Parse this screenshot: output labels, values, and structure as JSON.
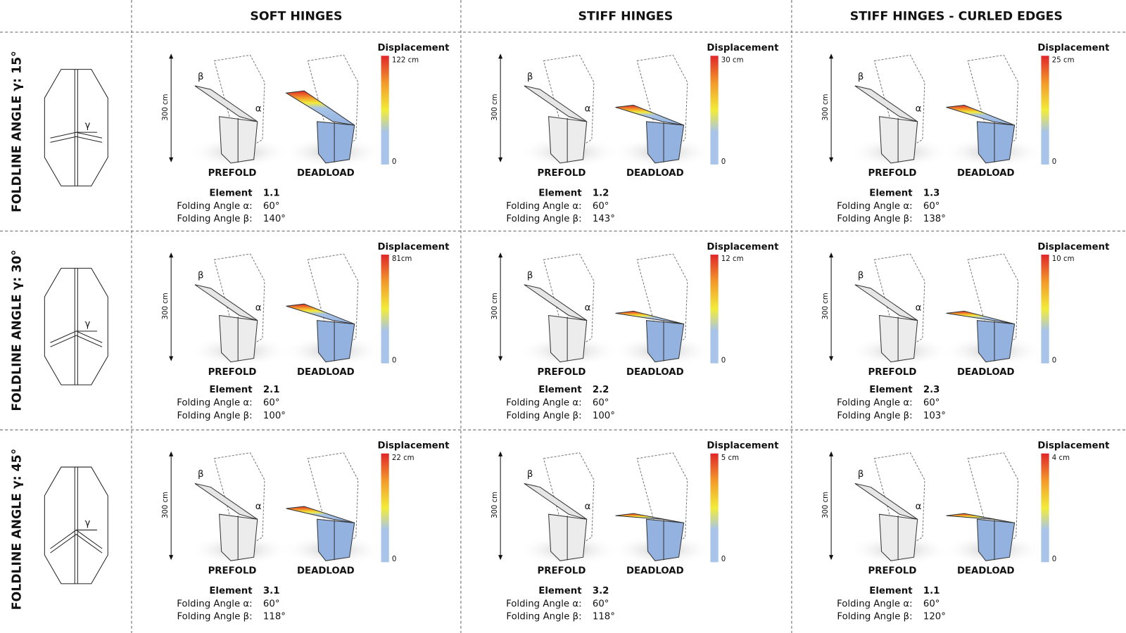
{
  "columns": [
    "SOFT HINGES",
    "STIFF HINGES",
    "STIFF HINGES - CURLED EDGES"
  ],
  "labels": {
    "legend_title": "Displacement",
    "legend_min": "0",
    "scale": "300 cm",
    "prefold": "PREFOLD",
    "deadload": "DEADLOAD",
    "element": "Element",
    "alpha": "Folding Angle α:",
    "beta": "Folding Angle β:",
    "alpha_symbol": "α",
    "beta_symbol": "β",
    "gamma_symbol": "γ"
  },
  "rows": [
    {
      "label": "FOLDLINE ANGLE γ: 15°",
      "cells": [
        {
          "max": "122 cm",
          "element": "1.1",
          "alpha": "60°",
          "beta": "140°"
        },
        {
          "max": "30 cm",
          "element": "1.2",
          "alpha": "60°",
          "beta": "143°"
        },
        {
          "max": "25 cm",
          "element": "1.3",
          "alpha": "60°",
          "beta": "138°"
        }
      ]
    },
    {
      "label": "FOLDLINE ANGLE γ: 30°",
      "cells": [
        {
          "max": "81cm",
          "element": "2.1",
          "alpha": "60°",
          "beta": "100°"
        },
        {
          "max": "12 cm",
          "element": "2.2",
          "alpha": "60°",
          "beta": "100°"
        },
        {
          "max": "10 cm",
          "element": "2.3",
          "alpha": "60°",
          "beta": "103°"
        }
      ]
    },
    {
      "label": "FOLDLINE ANGLE γ: 45°",
      "cells": [
        {
          "max": "22 cm",
          "element": "3.1",
          "alpha": "60°",
          "beta": "118°"
        },
        {
          "max": "5 cm",
          "element": "3.2",
          "alpha": "60°",
          "beta": "118°"
        },
        {
          "max": "4 cm",
          "element": "1.1",
          "alpha": "60°",
          "beta": "120°"
        }
      ]
    }
  ]
}
